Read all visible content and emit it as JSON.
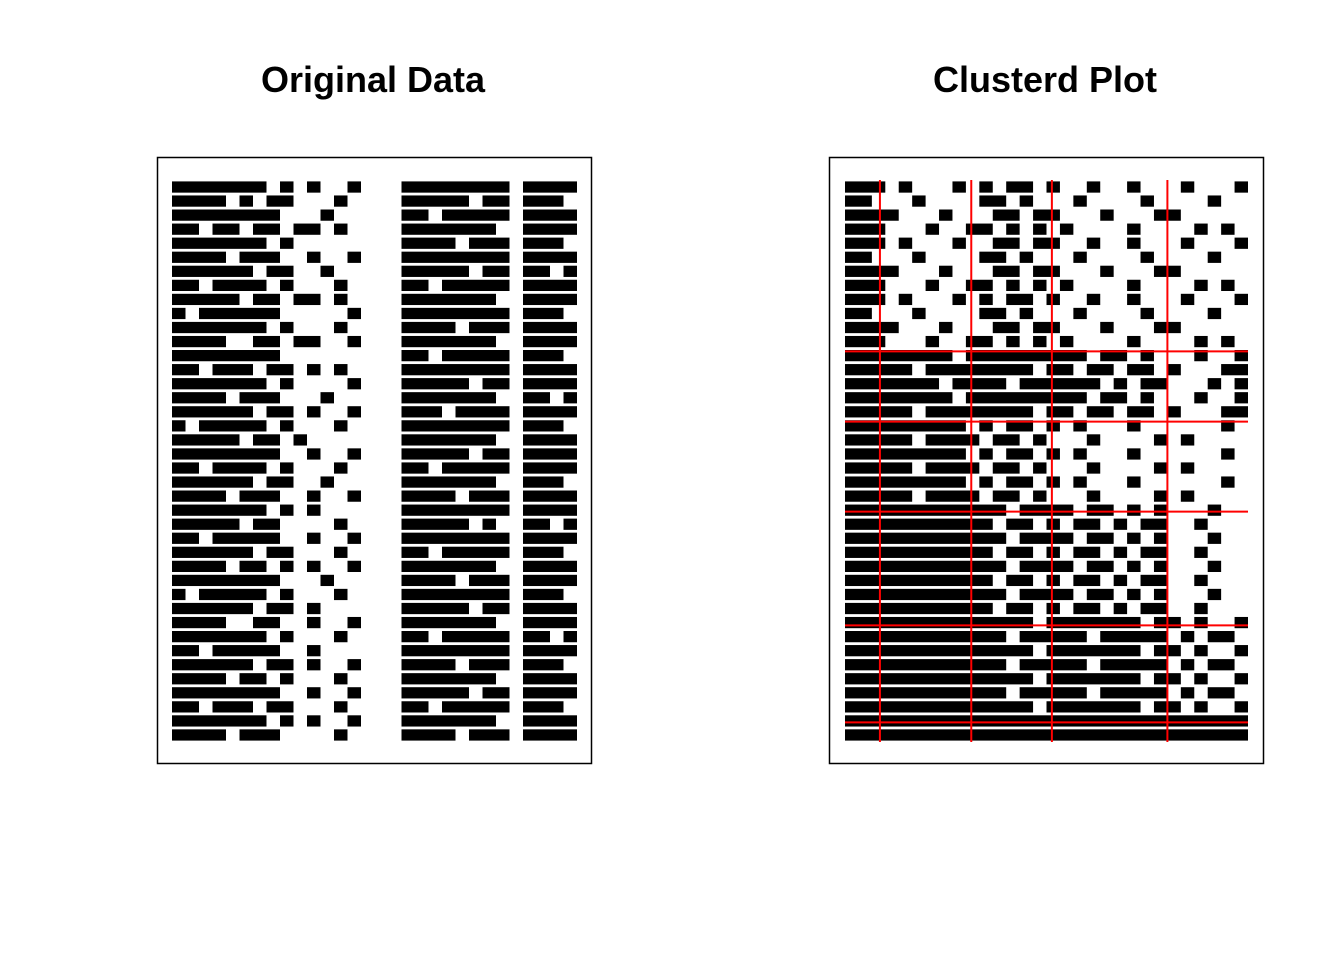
{
  "chart_data": [
    {
      "type": "binary-matrix",
      "title": "Original Data",
      "color": "#000000",
      "rows": [
        "111111101010010001111111101111",
        "111101011000100001111101101110",
        "111111110001000001101111101111",
        "110110110110100001111111001111",
        "111111101000000001111011101110",
        "111101110010010001111111101111",
        "111111011001000001111101101101",
        "110111101000100001101111101111",
        "111110110110100001111111001111",
        "101111110000010001111111101110",
        "111111101000100001111011101111",
        "111100110110010001111111001111",
        "111111110000000001101111101110",
        "110111011010100001111111101111",
        "111111101000010001111101101111",
        "111101110001000001111111001101",
        "111111011010010001110111101111",
        "101111101000100001111111101110",
        "111110110100000001111111001111",
        "111111110010010001111101101111",
        "110111101000100001101111101111",
        "111111011001000001111111001110",
        "111101110010010001111011101111",
        "111111101010000001111111101111",
        "111110110000100001111101001101",
        "110111110010010001111111101111",
        "111111011000100001101111101110",
        "111101101010010001111111001111",
        "111111110001000001111011101111",
        "101111101000100001111111101110",
        "111111011010000001111101101111",
        "111100110010010001111111001111",
        "111111101000100001101111101101",
        "110111110010000001111111101111",
        "111111011010010001111011101110",
        "111101101000100001111111001111",
        "111111110010010001111101101111",
        "110111011000100001101111101110",
        "111111101010010001111111001111",
        "111101110000100001111011101111"
      ]
    },
    {
      "type": "binary-matrix",
      "title": "Clusterd Plot",
      "color": "#000000",
      "break_color": "#ff0000",
      "col_breaks": [
        2.6,
        9.4,
        15.4,
        24
      ],
      "row_breaks": [
        12.2,
        17.2,
        23.6,
        31.7,
        38.6
      ],
      "rows": [
        "111010001010110100100100010001",
        "110001000011010001000010000100",
        "111100010001101100010001100000",
        "111000100110101010000100001010",
        "111010001001101100100100010001",
        "110001000011010001000010000100",
        "111100010001101100010001100000",
        "111000100110101010000100001010",
        "111010001010110100100100010001",
        "110001000011010001000010000100",
        "111100010001101100010001100000",
        "111000100110101010000100001010",
        "111111110111111111011010001001",
        "111110111111110110110110100011",
        "111111101111011111101011000101",
        "111111110111111111011010001001",
        "111110111111110110110110100011",
        "111111111010110101000100000010",
        "111110111101101000100001010000",
        "111111111010110101000100000010",
        "111110111101101000100001010000",
        "111111111010110101000100000010",
        "111110111101101000100001010000",
        "111111111111011110110101000100",
        "111111111110110101101011001000",
        "111111111111011110110101000100",
        "111111111110110101101011001000",
        "111111111111011110110101000100",
        "111111111110110101101011001000",
        "111111111111011110110101000100",
        "111111111110110101101011001000",
        "111111111111110111111101101001",
        "111111111111011111011111010110",
        "111111111111110111111101101001",
        "111111111111011111011111010110",
        "111111111111110111111101101001",
        "111111111111011111011111010110",
        "111111111111110111111101101001",
        "111111111111111111111111111111",
        "111111111111111111111111111111"
      ]
    }
  ]
}
